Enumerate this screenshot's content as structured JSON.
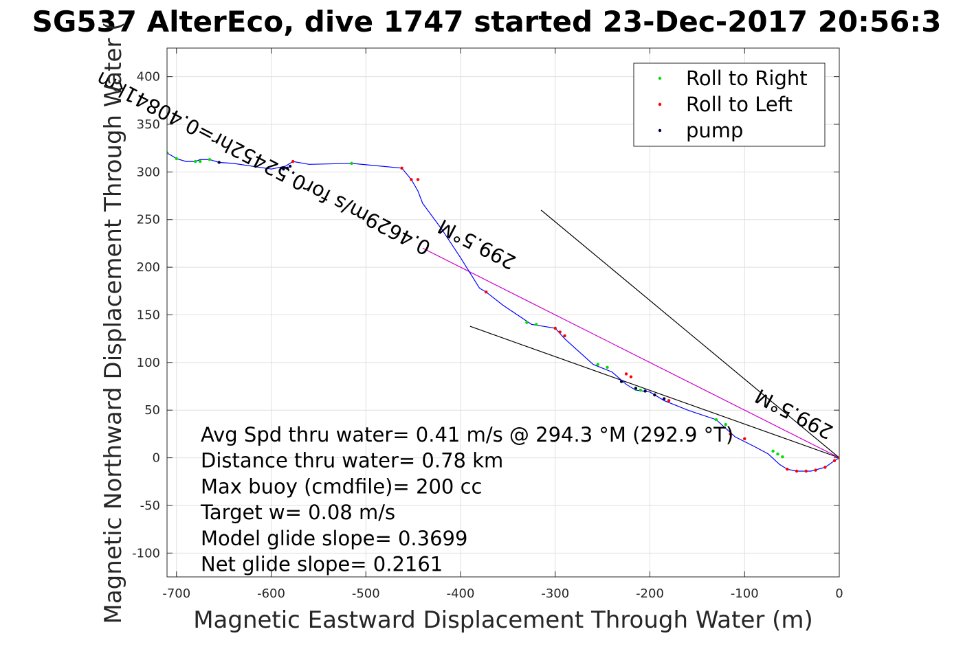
{
  "chart_data": {
    "type": "line",
    "title": "SG537 AlterEco, dive 1747 started 23-Dec-2017 20:56:3",
    "xlabel": "Magnetic Eastward Displacement Through Water (m)",
    "ylabel": "Magnetic Northward Displacement Through Water (",
    "xlim": [
      -710,
      0
    ],
    "ylim": [
      -125,
      430
    ],
    "xticks": [
      -700,
      -600,
      -500,
      -400,
      -300,
      -200,
      -100,
      0
    ],
    "yticks": [
      -100,
      -50,
      0,
      50,
      100,
      150,
      200,
      250,
      300,
      350,
      400
    ],
    "grid": true,
    "legend": {
      "placement": "top-right",
      "entries": [
        {
          "label": "Roll to Right",
          "color": "#00dd00"
        },
        {
          "label": "Roll to Left",
          "color": "#ff0000"
        },
        {
          "label": "pump",
          "color": "#000044"
        }
      ]
    },
    "track": {
      "color": "#0000ff",
      "x": [
        -710,
        -700,
        -690,
        -680,
        -675,
        -665,
        -655,
        -640,
        -600,
        -585,
        -577,
        -560,
        -515,
        -462,
        -452,
        -445,
        -440,
        -420,
        -400,
        -380,
        -373,
        -355,
        -325,
        -300,
        -290,
        -260,
        -240,
        -225,
        -215,
        -200,
        -185,
        -160,
        -130,
        -110,
        -90,
        -75,
        -63,
        -55,
        -45,
        -30,
        -15,
        -5,
        0
      ],
      "y": [
        320,
        314,
        311,
        311,
        313,
        313,
        310,
        309,
        303,
        306,
        311,
        308,
        309,
        304,
        292,
        280,
        267,
        240,
        210,
        178,
        174,
        160,
        140,
        136,
        125,
        98,
        90,
        77,
        71,
        69,
        60,
        50,
        40,
        22,
        12,
        4,
        -7,
        -12,
        -14,
        -14,
        -10,
        -3,
        0
      ]
    },
    "markers": {
      "right": {
        "x": [
          -710,
          -700,
          -680,
          -675,
          -665,
          -515,
          -330,
          -320,
          -255,
          -245,
          -215,
          -210,
          -205,
          -130,
          -120,
          -70,
          -65,
          -60
        ],
        "y": [
          320,
          314,
          311,
          311,
          313,
          309,
          142,
          140,
          98,
          95,
          72,
          71,
          70,
          40,
          35,
          7,
          4,
          1
        ]
      },
      "left": {
        "x": [
          -577,
          -462,
          -452,
          -445,
          -373,
          -300,
          -295,
          -290,
          -225,
          -220,
          -180,
          -115,
          -100,
          -55,
          -45,
          -35,
          -25,
          -15,
          -5,
          0
        ],
        "y": [
          311,
          304,
          292,
          292,
          174,
          136,
          132,
          128,
          88,
          85,
          60,
          25,
          20,
          -12,
          -14,
          -14,
          -13,
          -10,
          -3,
          0
        ]
      },
      "pump": {
        "x": [
          -655,
          -587,
          -583,
          -580,
          -230,
          -215,
          -205,
          -195,
          -185
        ],
        "y": [
          310,
          303,
          304,
          306,
          80,
          73,
          70,
          66,
          62
        ]
      }
    },
    "reference_lines": [
      {
        "name": "current",
        "color": "#000000",
        "x": [
          -315,
          0
        ],
        "y": [
          260,
          0
        ]
      },
      {
        "name": "glide",
        "color": "#000000",
        "x": [
          -390,
          0
        ],
        "y": [
          138,
          0
        ]
      },
      {
        "name": "heading",
        "color": "#cc00cc",
        "x": [
          -440,
          0
        ],
        "y": [
          220,
          0
        ]
      }
    ],
    "rotated_annotations": [
      {
        "text": "0.4629m/s for0.52452hr=0.40841km",
        "x": -430,
        "y": 225,
        "angle": 207.5
      },
      {
        "text": "299.5°M",
        "x": -340,
        "y": 210,
        "angle": 207.5
      },
      {
        "text": "299.5°M",
        "x": -5,
        "y": 32,
        "angle": 207.5
      }
    ],
    "annotations": [
      "Avg Spd thru water=  0.41 m/s @ 294.3 °M (292.9 °T)",
      "Distance thru water=  0.78 km",
      "Max buoy (cmdfile)= 200 cc",
      "Target w= 0.08 m/s",
      "Model glide slope= 0.3699",
      "Net glide slope= 0.2161"
    ]
  }
}
